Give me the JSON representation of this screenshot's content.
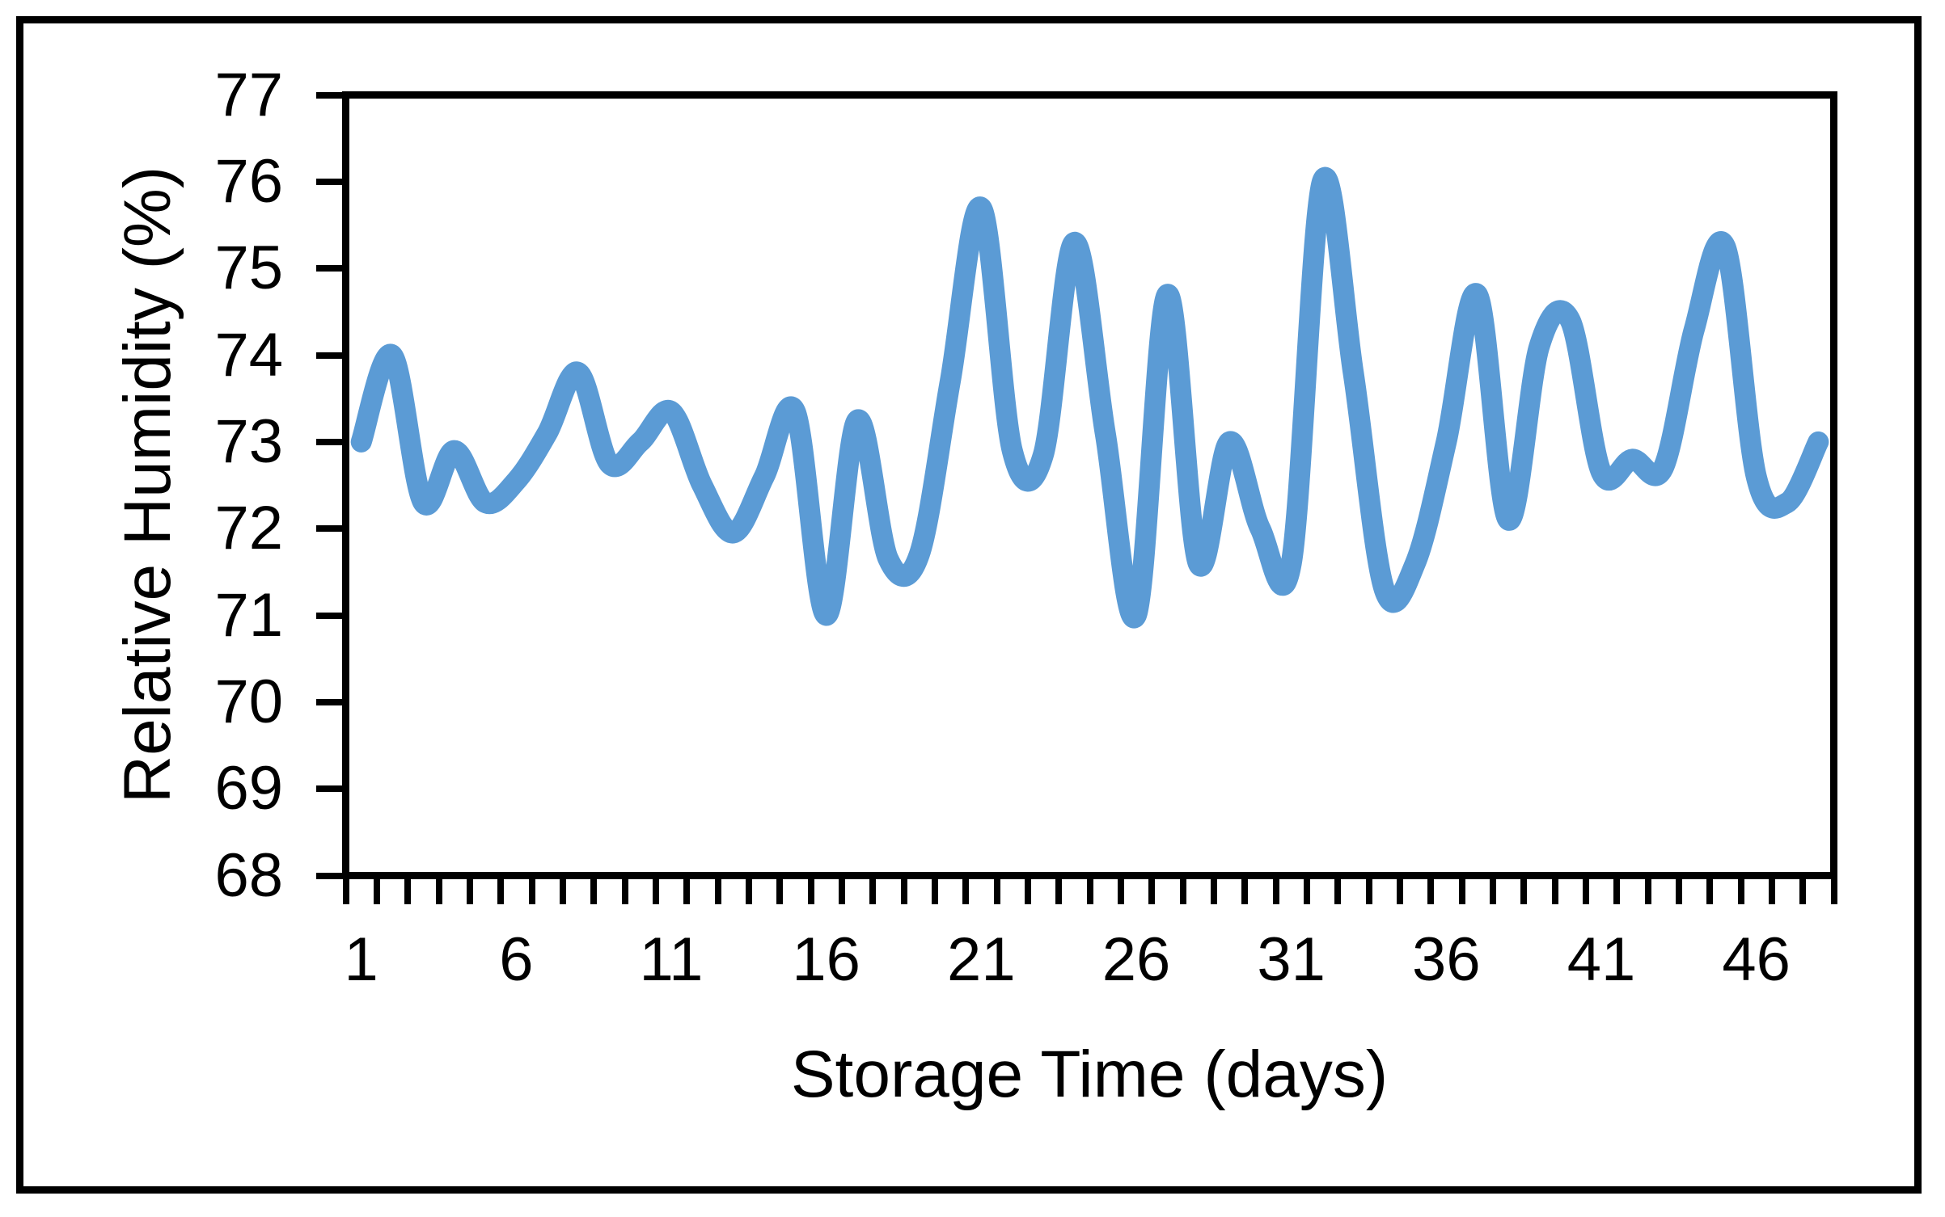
{
  "chart_data": {
    "type": "line",
    "title": "",
    "xlabel": "Storage Time (days)",
    "ylabel": "Relative Humidity (%)",
    "x": [
      1,
      2,
      3,
      4,
      5,
      6,
      7,
      8,
      9,
      10,
      11,
      12,
      13,
      14,
      15,
      16,
      17,
      18,
      19,
      20,
      21,
      22,
      23,
      24,
      25,
      26,
      27,
      28,
      29,
      30,
      31,
      32,
      33,
      34,
      35,
      36,
      37,
      38,
      39,
      40,
      41,
      42,
      43,
      44,
      45,
      46,
      47,
      48
    ],
    "values": [
      73.0,
      74.0,
      72.3,
      72.9,
      72.3,
      72.55,
      73.1,
      73.8,
      72.75,
      73.0,
      73.35,
      72.5,
      71.95,
      72.6,
      73.35,
      71.0,
      73.25,
      71.65,
      71.7,
      73.7,
      75.7,
      72.9,
      72.85,
      75.3,
      73.1,
      71.0,
      74.7,
      71.6,
      73.0,
      72.0,
      71.6,
      76.0,
      73.8,
      71.3,
      71.6,
      73.0,
      74.7,
      72.1,
      74.1,
      74.4,
      72.65,
      72.8,
      72.7,
      74.3,
      75.25,
      72.6,
      72.3,
      73.0
    ],
    "series_name": "Relative Humidity",
    "ylim": [
      68,
      77
    ],
    "xlim": [
      0.5,
      48.5
    ],
    "y_tick_labels": [
      "68",
      "69",
      "70",
      "71",
      "72",
      "73",
      "74",
      "75",
      "76",
      "77"
    ],
    "x_tick_label_days": [
      1,
      6,
      11,
      16,
      21,
      26,
      31,
      36,
      41,
      46
    ],
    "x_minor_tick_every": 1,
    "grid": "off",
    "legend": "none",
    "smoothed": true,
    "line_color": "#5B9BD5",
    "axis_color": "#000000",
    "background_color": "#FFFFFF"
  }
}
